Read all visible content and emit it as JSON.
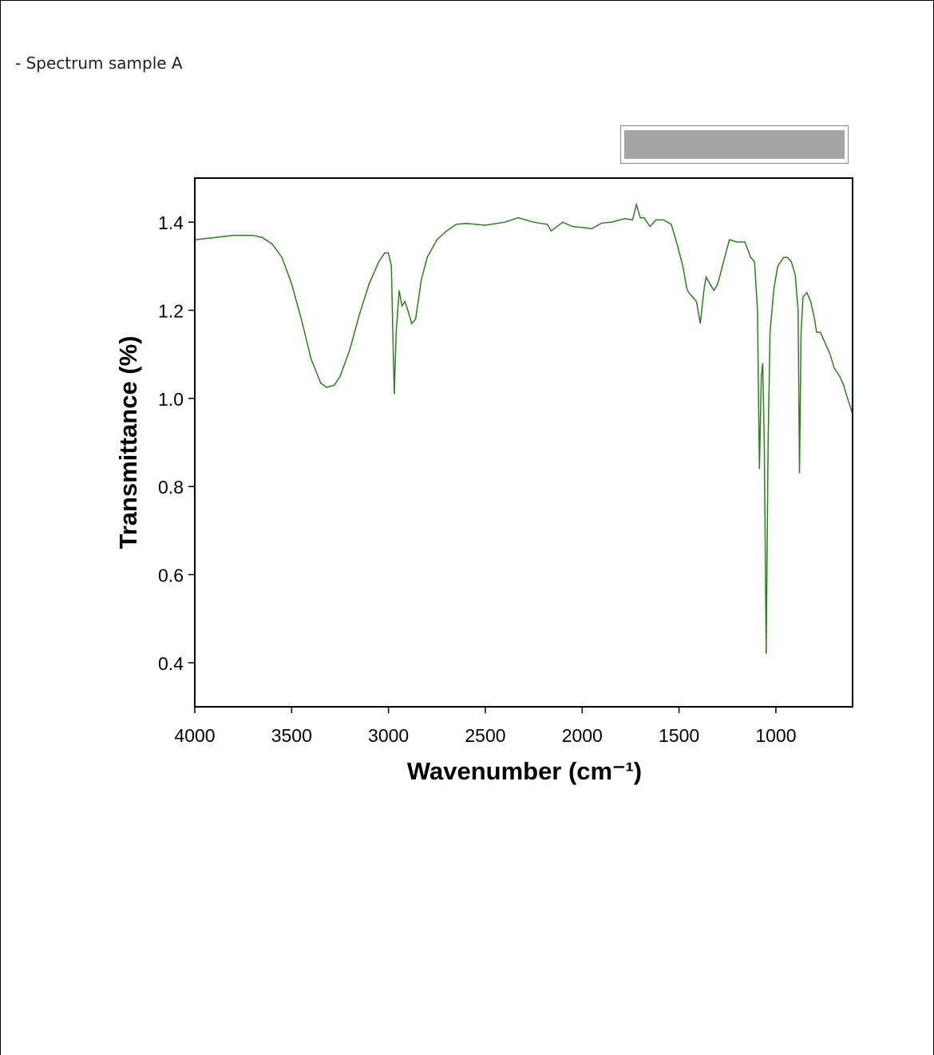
{
  "caption": "- Spectrum sample A",
  "chart_data": {
    "type": "line",
    "x_label": "Wavenumber (cm⁻¹)",
    "y_label": "Transmittance (%)",
    "color": "#2e7d1f",
    "xlim": [
      4000,
      604
    ],
    "ylim": [
      0.3,
      1.5
    ],
    "xticks": [
      4000,
      3500,
      3000,
      2500,
      2000,
      1500,
      1000
    ],
    "yticks": [
      0.4,
      0.6,
      0.8,
      {
        "value": 1,
        "label": "1.0"
      },
      1.2,
      1.4
    ],
    "x": [
      4000,
      3900,
      3800,
      3700,
      3650,
      3600,
      3550,
      3500,
      3450,
      3400,
      3350,
      3320,
      3280,
      3250,
      3200,
      3150,
      3100,
      3050,
      3020,
      3000,
      2985,
      2975,
      2970,
      2960,
      2945,
      2930,
      2915,
      2900,
      2880,
      2860,
      2830,
      2800,
      2750,
      2700,
      2650,
      2600,
      2500,
      2400,
      2330,
      2250,
      2180,
      2160,
      2100,
      2050,
      2000,
      1950,
      1900,
      1850,
      1780,
      1740,
      1720,
      1700,
      1680,
      1650,
      1620,
      1580,
      1540,
      1510,
      1480,
      1460,
      1450,
      1430,
      1410,
      1390,
      1370,
      1360,
      1340,
      1320,
      1300,
      1270,
      1240,
      1200,
      1160,
      1130,
      1110,
      1095,
      1085,
      1075,
      1068,
      1060,
      1050,
      1040,
      1030,
      1010,
      990,
      960,
      940,
      920,
      900,
      885,
      878,
      870,
      860,
      840,
      820,
      800,
      790,
      770,
      740,
      720,
      700,
      670,
      650,
      630,
      604
    ],
    "values": [
      1.36,
      1.365,
      1.37,
      1.37,
      1.365,
      1.35,
      1.32,
      1.26,
      1.18,
      1.09,
      1.035,
      1.025,
      1.03,
      1.05,
      1.11,
      1.19,
      1.26,
      1.31,
      1.33,
      1.33,
      1.3,
      1.1,
      1.01,
      1.15,
      1.245,
      1.21,
      1.22,
      1.2,
      1.17,
      1.18,
      1.27,
      1.32,
      1.36,
      1.38,
      1.395,
      1.397,
      1.393,
      1.4,
      1.41,
      1.4,
      1.395,
      1.38,
      1.4,
      1.39,
      1.388,
      1.385,
      1.398,
      1.4,
      1.408,
      1.405,
      1.44,
      1.41,
      1.41,
      1.39,
      1.405,
      1.405,
      1.395,
      1.35,
      1.3,
      1.25,
      1.24,
      1.23,
      1.22,
      1.17,
      1.25,
      1.275,
      1.26,
      1.245,
      1.26,
      1.31,
      1.36,
      1.355,
      1.355,
      1.32,
      1.31,
      1.2,
      0.84,
      1.05,
      1.08,
      0.9,
      0.42,
      0.9,
      1.15,
      1.25,
      1.3,
      1.32,
      1.32,
      1.31,
      1.28,
      1.2,
      0.83,
      1.15,
      1.23,
      1.24,
      1.22,
      1.18,
      1.15,
      1.15,
      1.12,
      1.1,
      1.07,
      1.05,
      1.03,
      1.0,
      0.965
    ]
  }
}
